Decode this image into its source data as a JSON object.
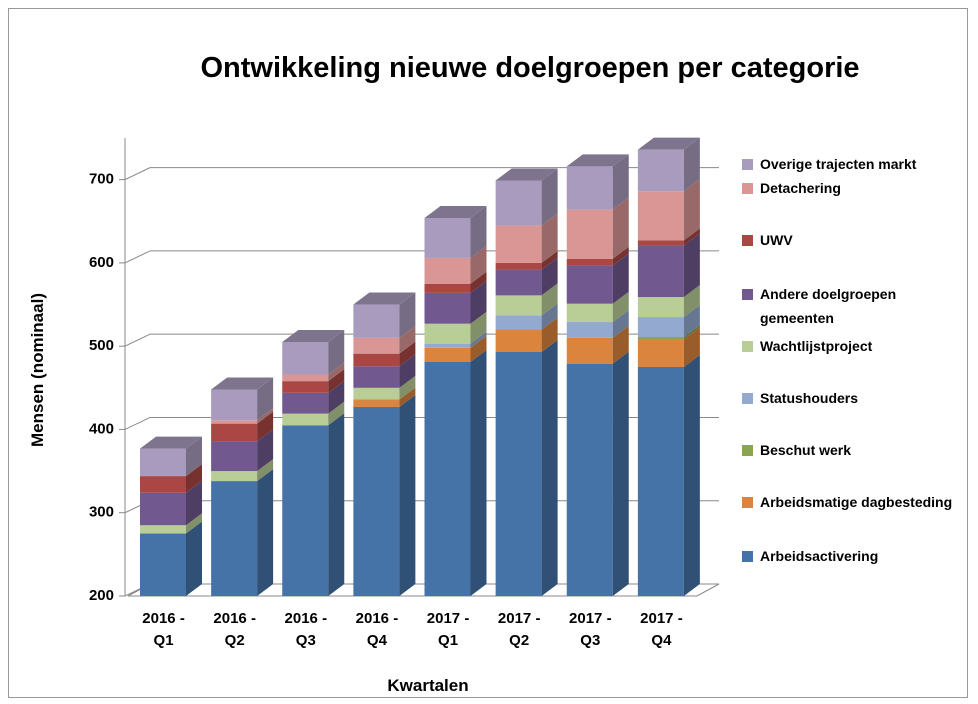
{
  "chart_data": {
    "type": "bar3d_stacked",
    "title": "Ontwikkeling nieuwe doelgroepen per categorie",
    "x_label": "Kwartalen",
    "y_label": "Mensen (nominaal)",
    "categories": [
      "2016 - Q1",
      "2016 - Q2",
      "2016 - Q3",
      "2016 - Q4",
      "2017 - Q1",
      "2017 - Q2",
      "2017 - Q3",
      "2017 - Q4"
    ],
    "ylim": [
      200,
      750
    ],
    "yticks": [
      200,
      300,
      400,
      500,
      600,
      700
    ],
    "grid": true,
    "series": [
      {
        "name": "Arbeidsactivering",
        "color": "#4572a7",
        "values": [
          275,
          338,
          405,
          427,
          481,
          493,
          479,
          475
        ]
      },
      {
        "name": "Arbeidsmatige dagbesteding",
        "color": "#db843d",
        "values": [
          0,
          0,
          0,
          9,
          17,
          27,
          31,
          33
        ]
      },
      {
        "name": "Beschut werk",
        "color": "#89a54e",
        "values": [
          0,
          0,
          0,
          0,
          0,
          0,
          0,
          3
        ]
      },
      {
        "name": "Statushouders",
        "color": "#93a9cf",
        "values": [
          0,
          0,
          0,
          0,
          5,
          17,
          19,
          24
        ]
      },
      {
        "name": "Wachtlijstproject",
        "color": "#b9cd96",
        "values": [
          10,
          12,
          14,
          14,
          24,
          24,
          22,
          24
        ]
      },
      {
        "name": "Andere doelgroepen gemeenten",
        "color": "#71588f",
        "values": [
          39,
          36,
          25,
          26,
          37,
          31,
          46,
          62
        ]
      },
      {
        "name": "UWV",
        "color": "#aa4643",
        "values": [
          20,
          21,
          14,
          15,
          11,
          8,
          8,
          6
        ]
      },
      {
        "name": "Detachering",
        "color": "#d99694",
        "values": [
          0,
          4,
          8,
          19,
          31,
          45,
          59,
          59
        ]
      },
      {
        "name": "Overige trajecten markt",
        "color": "#a99bbd",
        "values": [
          33,
          37,
          39,
          40,
          48,
          54,
          52,
          50
        ]
      }
    ]
  }
}
